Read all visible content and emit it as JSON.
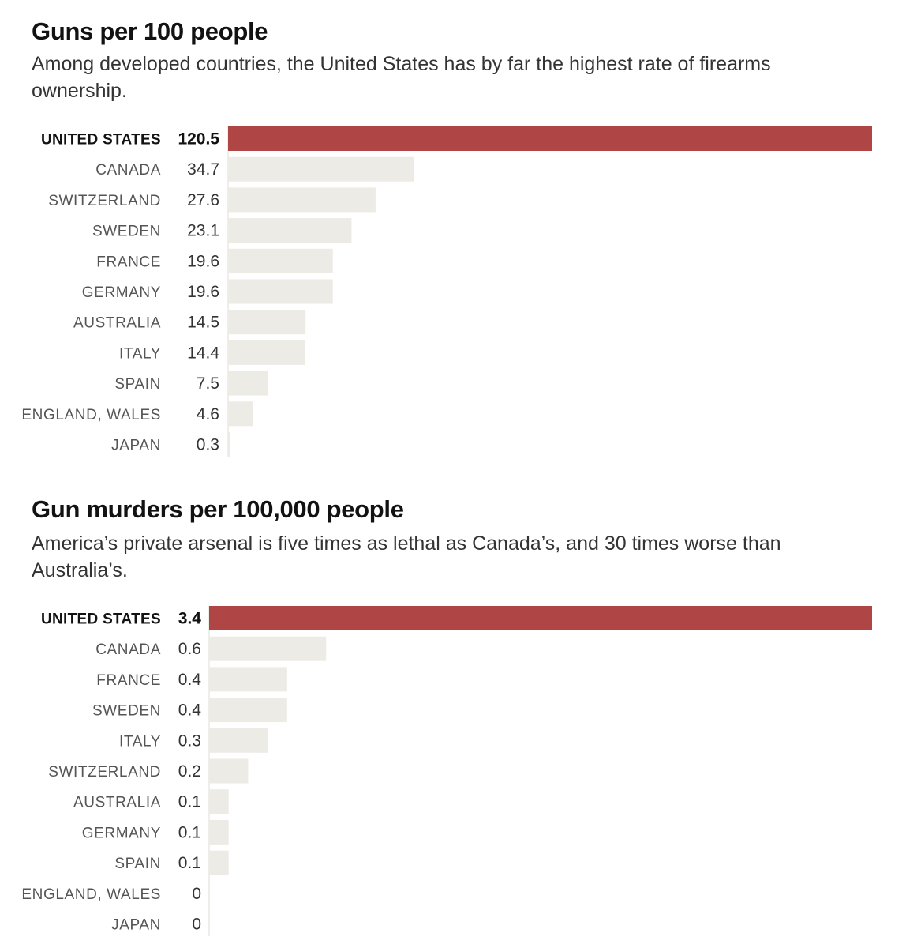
{
  "chart_data": [
    {
      "type": "bar",
      "title": "Guns per 100 people",
      "subtitle": "Among developed countries, the United States has by far the highest rate of firearms ownership.",
      "categories": [
        "UNITED STATES",
        "CANADA",
        "SWITZERLAND",
        "SWEDEN",
        "FRANCE",
        "GERMANY",
        "AUSTRALIA",
        "ITALY",
        "SPAIN",
        "ENGLAND, WALES",
        "JAPAN"
      ],
      "values": [
        120.5,
        34.7,
        27.6,
        23.1,
        19.6,
        19.6,
        14.5,
        14.4,
        7.5,
        4.6,
        0.3
      ],
      "labels": [
        "120.5",
        "34.7",
        "27.6",
        "23.1",
        "19.6",
        "19.6",
        "14.5",
        "14.4",
        "7.5",
        "4.6",
        "0.3"
      ],
      "highlight": "UNITED STATES",
      "orientation": "horizontal",
      "xlim": [
        0,
        120.5
      ],
      "grid": false,
      "legend": "none",
      "colors": {
        "highlight": "#AF4544",
        "bar": "#EDEBE6",
        "baseline": "#DEDCD7"
      }
    },
    {
      "type": "bar",
      "title": "Gun murders per 100,000 people",
      "subtitle": "America’s private arsenal is five times as lethal as Canada’s, and 30 times worse than Australia’s.",
      "categories": [
        "UNITED STATES",
        "CANADA",
        "FRANCE",
        "SWEDEN",
        "ITALY",
        "SWITZERLAND",
        "AUSTRALIA",
        "GERMANY",
        "SPAIN",
        "ENGLAND, WALES",
        "JAPAN"
      ],
      "values": [
        3.4,
        0.6,
        0.4,
        0.4,
        0.3,
        0.2,
        0.1,
        0.1,
        0.1,
        0,
        0
      ],
      "labels": [
        "3.4",
        "0.6",
        "0.4",
        "0.4",
        "0.3",
        "0.2",
        "0.1",
        "0.1",
        "0.1",
        "0",
        "0"
      ],
      "highlight": "UNITED STATES",
      "orientation": "horizontal",
      "xlim": [
        0,
        3.4
      ],
      "grid": false,
      "legend": "none",
      "colors": {
        "highlight": "#AF4544",
        "bar": "#EDEBE6",
        "baseline": "#DEDCD7"
      }
    }
  ]
}
